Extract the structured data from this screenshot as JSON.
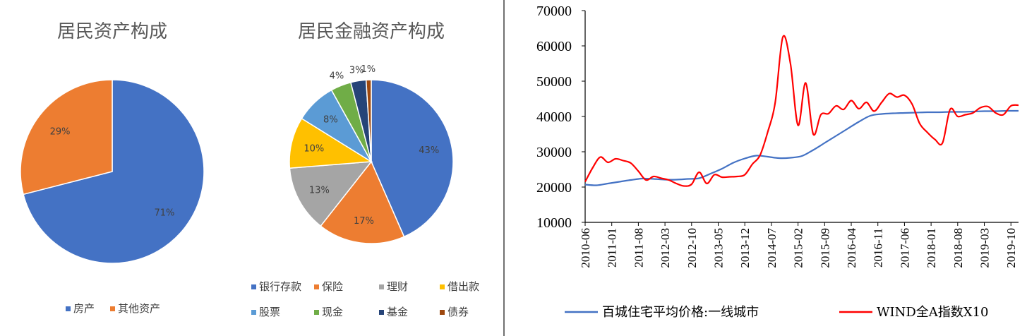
{
  "chart_data": [
    {
      "type": "pie",
      "title": "居民资产构成",
      "slices": [
        {
          "label": "房产",
          "value": 71,
          "value_label": "71%",
          "color": "#4472C4"
        },
        {
          "label": "其他资产",
          "value": 29,
          "value_label": "29%",
          "color": "#ED7D31"
        }
      ],
      "legend_position": "bottom"
    },
    {
      "type": "pie",
      "title": "居民金融资产构成",
      "slices": [
        {
          "label": "银行存款",
          "value": 43,
          "value_label": "43%",
          "color": "#4472C4"
        },
        {
          "label": "保险",
          "value": 17,
          "value_label": "17%",
          "color": "#ED7D31"
        },
        {
          "label": "理财",
          "value": 13,
          "value_label": "13%",
          "color": "#A5A5A5"
        },
        {
          "label": "借出款",
          "value": 10,
          "value_label": "10%",
          "color": "#FFC000"
        },
        {
          "label": "股票",
          "value": 8,
          "value_label": "8%",
          "color": "#5B9BD5"
        },
        {
          "label": "现金",
          "value": 4,
          "value_label": "4%",
          "color": "#70AD47"
        },
        {
          "label": "基金",
          "value": 3,
          "value_label": "3%",
          "color": "#264478"
        },
        {
          "label": "债券",
          "value": 1,
          "value_label": "1%",
          "color": "#9E480E"
        }
      ],
      "legend_position": "bottom"
    },
    {
      "type": "line",
      "title": "",
      "xlabel": "",
      "ylabel": "",
      "ylim": [
        10000,
        70000
      ],
      "yticks": [
        "10000",
        "20000",
        "30000",
        "40000",
        "50000",
        "60000",
        "70000"
      ],
      "xticks": [
        "2010-06",
        "2011-01",
        "2011-08",
        "2012-03",
        "2012-10",
        "2013-05",
        "2013-12",
        "2014-07",
        "2015-02",
        "2015-09",
        "2016-04",
        "2016-11",
        "2017-06",
        "2018-01",
        "2018-08",
        "2019-03",
        "2019-10"
      ],
      "x_start": "2010-06",
      "x_end": "2019-12",
      "grid": false,
      "legend_position": "bottom",
      "series": [
        {
          "name": "百城住宅平均价格:一线城市",
          "color": "#4472C4",
          "x": [
            "2010-06",
            "2010-09",
            "2010-12",
            "2011-03",
            "2011-06",
            "2011-09",
            "2011-12",
            "2012-03",
            "2012-06",
            "2012-09",
            "2012-12",
            "2013-03",
            "2013-06",
            "2013-09",
            "2013-12",
            "2014-03",
            "2014-06",
            "2014-09",
            "2014-12",
            "2015-03",
            "2015-06",
            "2015-09",
            "2015-12",
            "2016-03",
            "2016-06",
            "2016-09",
            "2016-12",
            "2017-03",
            "2017-06",
            "2017-09",
            "2017-12",
            "2018-03",
            "2018-06",
            "2018-09",
            "2018-12",
            "2019-03",
            "2019-06",
            "2019-09",
            "2019-12"
          ],
          "values": [
            20700,
            20500,
            21000,
            21500,
            22000,
            22400,
            22300,
            22100,
            22100,
            22300,
            22500,
            23800,
            25200,
            26900,
            28100,
            28900,
            28600,
            28200,
            28300,
            28800,
            30500,
            32500,
            34500,
            36500,
            38500,
            40200,
            40700,
            40900,
            41000,
            41100,
            41200,
            41200,
            41300,
            41300,
            41400,
            41500,
            41500,
            41600,
            41600
          ]
        },
        {
          "name": "WIND全A指数X10",
          "color": "#FF0000",
          "x": [
            "2010-06",
            "2010-08",
            "2010-10",
            "2010-12",
            "2011-02",
            "2011-04",
            "2011-06",
            "2011-08",
            "2011-10",
            "2011-12",
            "2012-02",
            "2012-04",
            "2012-06",
            "2012-08",
            "2012-10",
            "2012-12",
            "2013-02",
            "2013-04",
            "2013-06",
            "2013-08",
            "2013-10",
            "2013-12",
            "2014-02",
            "2014-04",
            "2014-06",
            "2014-08",
            "2014-10",
            "2014-12",
            "2015-02",
            "2015-04",
            "2015-06",
            "2015-08",
            "2015-10",
            "2015-12",
            "2016-02",
            "2016-04",
            "2016-06",
            "2016-08",
            "2016-10",
            "2016-12",
            "2017-02",
            "2017-04",
            "2017-06",
            "2017-08",
            "2017-10",
            "2017-12",
            "2018-02",
            "2018-04",
            "2018-06",
            "2018-08",
            "2018-10",
            "2018-12",
            "2019-02",
            "2019-04",
            "2019-06",
            "2019-08",
            "2019-10",
            "2019-12"
          ],
          "values": [
            21500,
            25500,
            28500,
            27000,
            28000,
            27500,
            26800,
            24500,
            22000,
            23000,
            22500,
            22000,
            21000,
            20300,
            20800,
            24200,
            21000,
            23500,
            22800,
            22900,
            23000,
            23500,
            26500,
            29000,
            35500,
            44000,
            62500,
            55000,
            37500,
            49500,
            35000,
            40500,
            40800,
            43000,
            42000,
            44500,
            42200,
            44000,
            41500,
            44000,
            46500,
            45500,
            46000,
            43500,
            38000,
            35500,
            33500,
            32500,
            42000,
            40000,
            40500,
            41000,
            42500,
            42800,
            41000,
            40500,
            43000,
            43200
          ]
        }
      ]
    }
  ]
}
